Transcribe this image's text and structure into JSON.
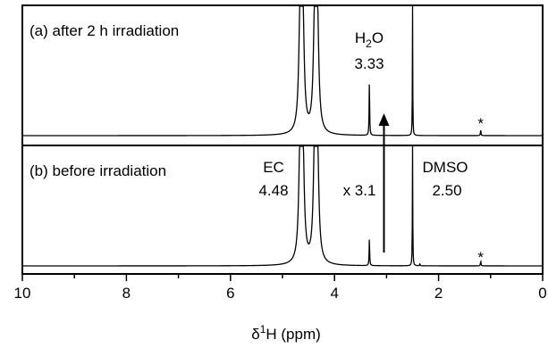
{
  "chart_data": {
    "type": "line",
    "xlabel": "δ¹H (ppm)",
    "xlabel_prefix": "δ",
    "xlabel_sup": "1",
    "xlabel_suffix": "H (ppm)",
    "xlim": [
      10,
      0
    ],
    "x_reversed": true,
    "x_ticks": [
      10,
      8,
      6,
      4,
      2,
      0
    ],
    "grid": false,
    "legend": "none",
    "line_color": "#000000",
    "accent_color": "#d42a2a",
    "series": [
      {
        "label": "(a) after 2 h irradiation",
        "peaks": [
          {
            "ppm": 4.66,
            "height": 1.15,
            "width": 0.03
          },
          {
            "ppm": 4.61,
            "height": 1.15,
            "width": 0.03
          },
          {
            "ppm": 4.38,
            "height": 1.15,
            "width": 0.03
          },
          {
            "ppm": 4.33,
            "height": 1.15,
            "width": 0.03
          },
          {
            "ppm": 3.33,
            "height": 0.53,
            "width": 0.006
          },
          {
            "ppm": 2.5,
            "height": 1.3,
            "width": 0.004
          },
          {
            "ppm": 1.19,
            "height": 0.06,
            "width": 0.006
          }
        ]
      },
      {
        "label": "(b) before irradiation",
        "peaks": [
          {
            "ppm": 4.66,
            "height": 1.15,
            "width": 0.03
          },
          {
            "ppm": 4.61,
            "height": 1.15,
            "width": 0.03
          },
          {
            "ppm": 4.38,
            "height": 1.15,
            "width": 0.03
          },
          {
            "ppm": 4.33,
            "height": 1.15,
            "width": 0.03
          },
          {
            "ppm": 3.33,
            "height": 0.27,
            "width": 0.006
          },
          {
            "ppm": 2.5,
            "height": 1.3,
            "width": 0.004
          },
          {
            "ppm": 2.36,
            "height": 0.02,
            "width": 0.006
          },
          {
            "ppm": 1.19,
            "height": 0.05,
            "width": 0.006
          }
        ]
      }
    ],
    "annotations": [
      {
        "panel": 0,
        "text": "H",
        "sub": "2",
        "tail": "O",
        "value": "3.33",
        "ppm": 3.33
      },
      {
        "panel": 0,
        "text": "*",
        "ppm": 1.19
      },
      {
        "panel": 1,
        "text": "EC",
        "value": "4.48",
        "ppm": 4.48
      },
      {
        "panel": 1,
        "text": "DMSO",
        "value": "2.50",
        "ppm": 2.5
      },
      {
        "panel": 1,
        "text": "x 3.1",
        "ppm": 3.9
      },
      {
        "panel": 1,
        "text": "*",
        "ppm": 1.19
      }
    ],
    "arrow": {
      "ppm": 3.05,
      "from_panel": 1,
      "to_panel": 0
    }
  }
}
